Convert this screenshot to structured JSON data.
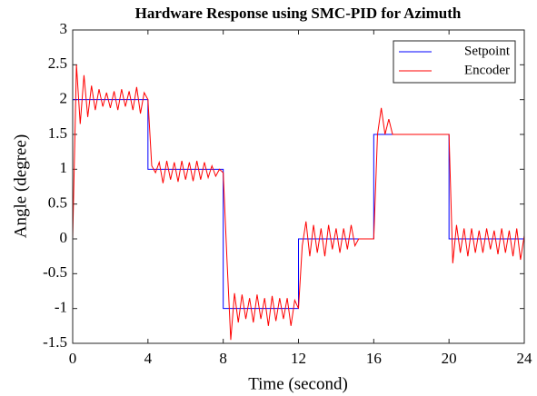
{
  "chart_data": {
    "type": "line",
    "title": "Hardware Response using SMC-PID for Azimuth",
    "xlabel": "Time (second)",
    "ylabel": "Angle (degree)",
    "xlim": [
      0,
      24
    ],
    "xticks": [
      0,
      4,
      8,
      12,
      16,
      20,
      24
    ],
    "ylim": [
      -1.5,
      3
    ],
    "yticks": [
      -1.5,
      -1,
      -0.5,
      0,
      0.5,
      1,
      1.5,
      2,
      2.5,
      3
    ],
    "legend": "northeast",
    "series": [
      {
        "name": "Setpoint",
        "color": "#0000ff",
        "x": [
          0,
          0,
          4,
          4,
          8,
          8,
          12,
          12,
          16,
          16,
          20,
          20,
          24
        ],
        "values": [
          0,
          2,
          2,
          1,
          1,
          -1,
          -1,
          0,
          0,
          1.5,
          1.5,
          0,
          0
        ]
      },
      {
        "name": "Encoder",
        "color": "#ff0000",
        "x": [
          0,
          0.2,
          0.4,
          0.6,
          0.8,
          1,
          1.2,
          1.4,
          1.6,
          1.8,
          2,
          2.2,
          2.4,
          2.6,
          2.8,
          3,
          3.2,
          3.4,
          3.6,
          3.8,
          4,
          4.2,
          4.4,
          4.6,
          4.8,
          5,
          5.2,
          5.4,
          5.6,
          5.8,
          6,
          6.2,
          6.4,
          6.6,
          6.8,
          7,
          7.2,
          7.4,
          7.6,
          7.8,
          8,
          8.2,
          8.4,
          8.6,
          8.8,
          9,
          9.2,
          9.4,
          9.6,
          9.8,
          10,
          10.2,
          10.4,
          10.6,
          10.8,
          11,
          11.2,
          11.4,
          11.6,
          11.8,
          12,
          12.2,
          12.4,
          12.6,
          12.8,
          13,
          13.2,
          13.4,
          13.6,
          13.8,
          14,
          14.2,
          14.4,
          14.6,
          14.8,
          15,
          15.2,
          15.4,
          15.6,
          15.8,
          16,
          16.2,
          16.4,
          16.6,
          16.8,
          17,
          17.2,
          17.4,
          17.6,
          17.8,
          18,
          18.2,
          18.4,
          18.6,
          18.8,
          19,
          19.2,
          19.4,
          19.6,
          19.8,
          20,
          20.2,
          20.4,
          20.6,
          20.8,
          21,
          21.2,
          21.4,
          21.6,
          21.8,
          22,
          22.2,
          22.4,
          22.6,
          22.8,
          23,
          23.2,
          23.4,
          23.6,
          23.8,
          24
        ],
        "values": [
          0,
          2.5,
          1.65,
          2.35,
          1.75,
          2.2,
          1.85,
          2.15,
          1.9,
          2.1,
          1.88,
          2.12,
          1.85,
          2.15,
          1.9,
          2.12,
          1.85,
          2.18,
          1.8,
          2.1,
          2,
          1.05,
          0.95,
          1.1,
          0.8,
          1.12,
          0.85,
          1.1,
          0.82,
          1.12,
          0.85,
          1.1,
          0.83,
          1.12,
          0.85,
          1.1,
          0.88,
          1.05,
          0.9,
          1,
          0.95,
          -0.3,
          -1.45,
          -0.78,
          -1.2,
          -0.8,
          -1.15,
          -0.85,
          -1.2,
          -0.8,
          -1.15,
          -0.85,
          -1.25,
          -0.82,
          -1.18,
          -0.85,
          -1.15,
          -0.85,
          -1.25,
          -0.88,
          -1,
          -0.1,
          0.25,
          -0.25,
          0.2,
          -0.2,
          0.15,
          -0.25,
          0.2,
          -0.15,
          0.15,
          -0.2,
          0.15,
          -0.15,
          0.2,
          -0.1,
          0,
          0,
          0,
          0,
          0,
          1.5,
          1.88,
          1.5,
          1.72,
          1.5,
          1.5,
          1.5,
          1.5,
          1.5,
          1.5,
          1.5,
          1.5,
          1.5,
          1.5,
          1.5,
          1.5,
          1.5,
          1.5,
          1.5,
          1.5,
          -0.35,
          0.2,
          -0.2,
          0.15,
          -0.25,
          0.15,
          -0.2,
          0.12,
          -0.2,
          0.15,
          -0.15,
          0.12,
          -0.22,
          0.15,
          -0.2,
          0.12,
          -0.25,
          0.15,
          -0.3,
          0.05
        ]
      }
    ]
  }
}
